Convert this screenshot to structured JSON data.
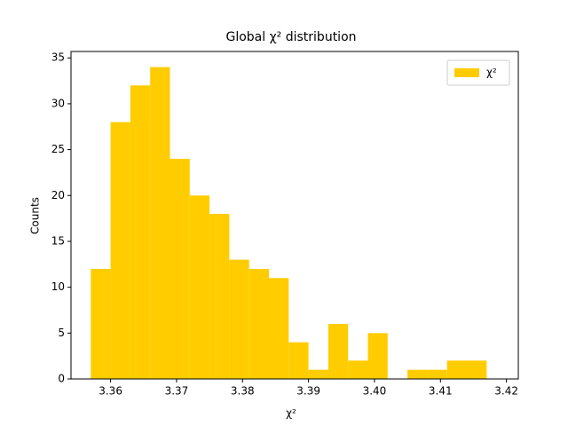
{
  "chart_data": {
    "type": "histogram",
    "title": "Global χ² distribution",
    "xlabel": "χ²",
    "ylabel": "Counts",
    "bins": [
      3.357,
      3.36,
      3.363,
      3.366,
      3.369,
      3.372,
      3.375,
      3.378,
      3.381,
      3.384,
      3.387,
      3.39,
      3.393,
      3.396,
      3.399,
      3.402,
      3.405,
      3.408,
      3.411,
      3.414,
      3.417
    ],
    "series": [
      {
        "name": "χ²",
        "color": "#ffcc00",
        "values": [
          12,
          28,
          32,
          34,
          24,
          20,
          18,
          13,
          12,
          11,
          4,
          1,
          6,
          2,
          5,
          0,
          1,
          1,
          2,
          2
        ]
      }
    ],
    "xlim": [
      3.354,
      3.4218
    ],
    "ylim": [
      0,
      35.7
    ],
    "xticks": [
      3.36,
      3.37,
      3.38,
      3.39,
      {
        "value": 3.4,
        "label": "3.40"
      },
      3.41,
      3.42
    ],
    "yticks": [
      0,
      5,
      10,
      15,
      20,
      25,
      30,
      35
    ],
    "legend": "upper right"
  }
}
